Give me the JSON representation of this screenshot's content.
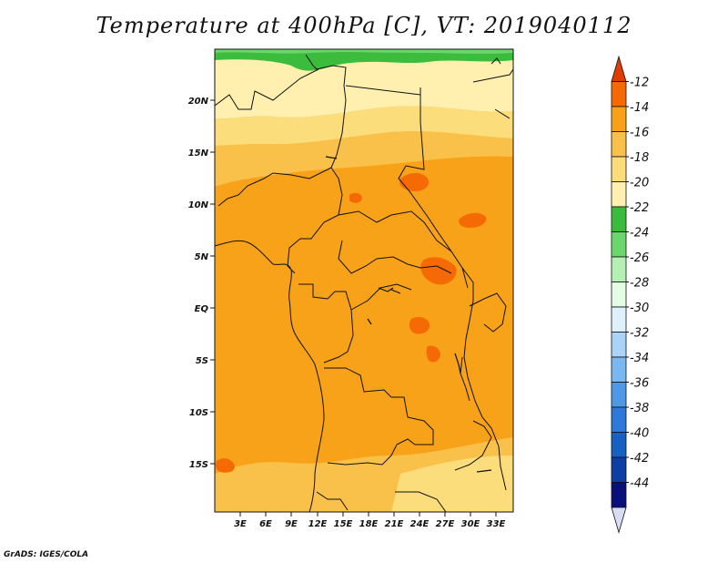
{
  "title": "Temperature at 400hPa [C], VT: 2019040112",
  "credit": "GrADS: IGES/COLA",
  "map": {
    "lon_range": [
      0,
      35
    ],
    "lat_range": [
      -20,
      24.5
    ],
    "lat_ticks": [
      "20N",
      "15N",
      "10N",
      "5N",
      "EQ",
      "5S",
      "10S",
      "15S"
    ],
    "lon_ticks": [
      "3E",
      "6E",
      "9E",
      "12E",
      "15E",
      "18E",
      "21E",
      "24E",
      "27E",
      "30E",
      "33E"
    ]
  },
  "colorbar": {
    "labels": [
      "-12",
      "-14",
      "-16",
      "-18",
      "-20",
      "-22",
      "-24",
      "-26",
      "-28",
      "-30",
      "-32",
      "-34",
      "-36",
      "-38",
      "-40",
      "-42",
      "-44"
    ],
    "colors": [
      "#e03c05",
      "#f56a04",
      "#f7a218",
      "#fac14a",
      "#fcdd7c",
      "#fff0b0",
      "#3cbc3c",
      "#6bd66b",
      "#b4f0b4",
      "#e4fbe4",
      "#dff0fd",
      "#a9d3f7",
      "#7ab8f2",
      "#4f98e8",
      "#2d78d8",
      "#1760c4",
      "#0c3ea4",
      "#0a107a",
      "#d8dcf4"
    ]
  }
}
